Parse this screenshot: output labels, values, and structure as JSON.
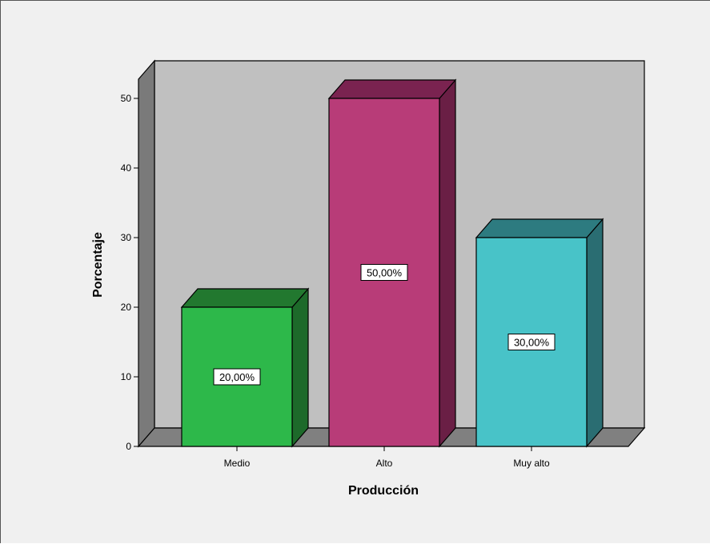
{
  "chart_data": {
    "type": "bar",
    "style": "3d",
    "categories": [
      "Medio",
      "Alto",
      "Muy alto"
    ],
    "values": [
      20,
      50,
      30
    ],
    "data_labels": [
      "20,00%",
      "50,00%",
      "30,00%"
    ],
    "colors": {
      "bars": [
        "#2db84a",
        "#b83c78",
        "#48c3c8"
      ],
      "bar_tops": [
        "#22782f",
        "#7a2350",
        "#2d7b80"
      ],
      "bar_sides": [
        "#1d6a2a",
        "#6a1f45",
        "#2a6d72"
      ],
      "wall": "#c0c0c0",
      "wall_side": "#7a7a7a",
      "floor": "#808080"
    },
    "yticks": [
      0,
      10,
      20,
      30,
      40,
      50
    ],
    "ylim": [
      0,
      50
    ],
    "xlabel": "Producción",
    "ylabel": "Porcentaje",
    "grid": false
  }
}
